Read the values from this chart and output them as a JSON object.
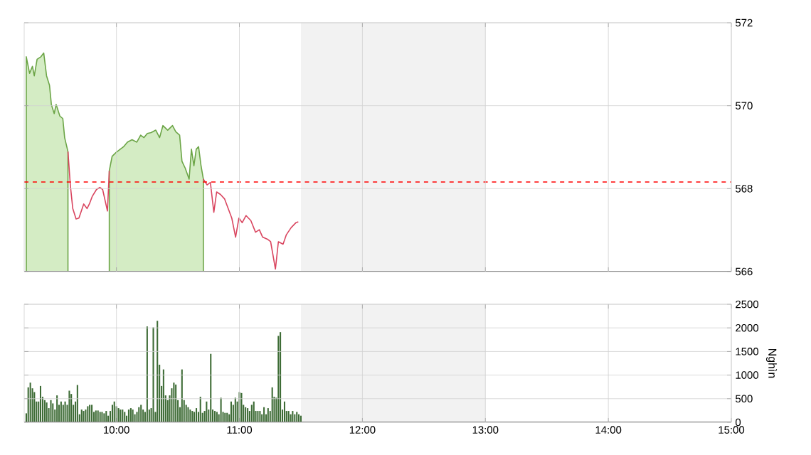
{
  "chart_data": [
    {
      "type": "line",
      "xlim": [
        9.25,
        15
      ],
      "ylim": [
        566,
        572
      ],
      "yticks": [
        566,
        568,
        570,
        572
      ],
      "xticks": [
        {
          "value": 10,
          "label": null
        },
        {
          "value": 11,
          "label": null
        },
        {
          "value": 12,
          "label": null
        },
        {
          "value": 13,
          "label": null
        },
        {
          "value": 14,
          "label": null
        },
        {
          "value": 15,
          "label": null
        }
      ],
      "tick_labels": "y",
      "grid": true,
      "x": [
        9.267,
        9.294,
        9.317,
        9.332,
        9.355,
        9.386,
        9.409,
        9.432,
        9.456,
        9.471,
        9.494,
        9.51,
        9.54,
        9.564,
        9.579,
        9.606,
        9.625,
        9.645,
        9.672,
        9.695,
        9.734,
        9.761,
        9.78,
        9.803,
        9.838,
        9.865,
        9.888,
        9.927,
        9.942,
        9.965,
        9.996,
        10.031,
        10.058,
        10.089,
        10.127,
        10.166,
        10.197,
        10.224,
        10.251,
        10.282,
        10.32,
        10.351,
        10.378,
        10.417,
        10.456,
        10.483,
        10.514,
        10.533,
        10.56,
        10.591,
        10.61,
        10.63,
        10.649,
        10.668,
        10.688,
        10.707,
        10.737,
        10.764,
        10.792,
        10.815,
        10.846,
        10.88,
        10.938,
        10.969,
        10.996,
        11.023,
        11.054,
        11.093,
        11.131,
        11.162,
        11.189,
        11.228,
        11.254,
        11.293,
        11.317,
        11.355,
        11.382,
        11.421,
        11.46,
        11.479
      ],
      "series": [
        {
          "type": "area",
          "color": "#d4ecc4",
          "values": [
            571.18,
            570.78,
            570.95,
            570.72,
            571.12,
            571.18,
            571.27,
            570.72,
            570.49,
            570.03,
            569.81,
            570.03,
            569.75,
            569.69,
            569.23,
            568.89,
            null,
            null,
            null,
            null,
            null,
            null,
            null,
            null,
            null,
            null,
            null,
            null,
            null,
            null,
            null,
            null,
            null,
            null,
            null,
            null,
            null,
            null,
            null,
            null,
            null,
            null,
            null,
            null,
            null,
            null,
            null,
            null,
            null,
            null,
            null,
            null,
            null,
            null,
            null,
            null,
            null,
            null,
            null,
            null,
            null,
            null,
            null,
            null,
            null,
            null,
            null,
            null,
            null,
            null,
            null,
            null,
            null,
            null,
            null,
            null,
            null,
            null,
            null,
            null
          ]
        },
        {
          "type": "area",
          "color": "#d4ecc4",
          "values": [
            null,
            null,
            null,
            null,
            null,
            null,
            null,
            null,
            null,
            null,
            null,
            null,
            null,
            null,
            null,
            null,
            null,
            null,
            null,
            null,
            null,
            null,
            null,
            null,
            null,
            null,
            null,
            null,
            568.43,
            568.78,
            568.87,
            568.95,
            569.01,
            569.12,
            569.18,
            569.12,
            569.29,
            569.23,
            569.33,
            569.35,
            569.41,
            569.23,
            569.52,
            569.41,
            569.52,
            569.37,
            569.29,
            568.66,
            568.49,
            568.23,
            568.95,
            568.55,
            568.95,
            569.01,
            568.55,
            568.23,
            null,
            null,
            null,
            null,
            null,
            null,
            null,
            null,
            null,
            null,
            null,
            null,
            null,
            null,
            null,
            null,
            null,
            null,
            null,
            null,
            null,
            null,
            null,
            null
          ]
        },
        {
          "type": "line",
          "color": "#d9455f",
          "values": [
            null,
            null,
            null,
            null,
            null,
            null,
            null,
            null,
            null,
            null,
            null,
            null,
            null,
            null,
            null,
            568.89,
            568.09,
            567.52,
            567.27,
            567.29,
            567.63,
            567.52,
            567.63,
            567.81,
            567.98,
            568.03,
            567.98,
            567.46,
            568.43,
            null,
            null,
            null,
            null,
            null,
            null,
            null,
            null,
            null,
            null,
            null,
            null,
            null,
            null,
            null,
            null,
            null,
            null,
            null,
            null,
            null,
            null,
            null,
            null,
            null,
            null,
            568.23,
            568.09,
            568.15,
            567.43,
            567.92,
            567.86,
            567.75,
            567.29,
            566.83,
            567.29,
            567.18,
            567.35,
            567.23,
            566.95,
            567.01,
            566.83,
            566.78,
            566.72,
            566.06,
            566.72,
            566.66,
            566.89,
            567.06,
            567.18,
            567.2
          ]
        }
      ],
      "ref_lines": [
        {
          "axis": "y",
          "value": 568.16,
          "color": "#ff0000",
          "line_style": "dashed"
        }
      ],
      "bands": [
        {
          "axis": "x",
          "from": 11.5,
          "to": 13,
          "color": "#f2f2f2"
        }
      ]
    },
    {
      "type": "bar",
      "xlim": [
        9.25,
        15
      ],
      "ylim": [
        0,
        2500
      ],
      "yticks": [
        0,
        500,
        1000,
        1500,
        2000,
        2500
      ],
      "ylabel": "Nghìn",
      "grid": true,
      "xticks": [
        {
          "value": 10,
          "label": "10:00"
        },
        {
          "value": 11,
          "label": "11:00"
        },
        {
          "value": 12,
          "label": "12:00"
        },
        {
          "value": 13,
          "label": "13:00"
        },
        {
          "value": 14,
          "label": "14:00"
        },
        {
          "value": 15,
          "label": "15:00"
        }
      ],
      "x": [
        9.267,
        9.283,
        9.3,
        9.317,
        9.333,
        9.35,
        9.367,
        9.383,
        9.4,
        9.417,
        9.433,
        9.45,
        9.467,
        9.483,
        9.5,
        9.517,
        9.533,
        9.55,
        9.567,
        9.583,
        9.6,
        9.617,
        9.633,
        9.65,
        9.667,
        9.683,
        9.7,
        9.717,
        9.733,
        9.75,
        9.767,
        9.783,
        9.8,
        9.817,
        9.833,
        9.85,
        9.867,
        9.883,
        9.9,
        9.917,
        9.933,
        9.95,
        9.967,
        9.983,
        10,
        10.017,
        10.033,
        10.05,
        10.067,
        10.083,
        10.1,
        10.117,
        10.133,
        10.15,
        10.167,
        10.183,
        10.2,
        10.217,
        10.233,
        10.25,
        10.267,
        10.283,
        10.3,
        10.317,
        10.333,
        10.35,
        10.367,
        10.383,
        10.4,
        10.417,
        10.433,
        10.45,
        10.467,
        10.483,
        10.5,
        10.517,
        10.533,
        10.55,
        10.567,
        10.583,
        10.6,
        10.617,
        10.633,
        10.65,
        10.667,
        10.683,
        10.7,
        10.717,
        10.733,
        10.75,
        10.767,
        10.783,
        10.8,
        10.817,
        10.833,
        10.85,
        10.867,
        10.883,
        10.9,
        10.917,
        10.933,
        10.95,
        10.967,
        10.983,
        11,
        11.017,
        11.033,
        11.05,
        11.067,
        11.083,
        11.1,
        11.117,
        11.133,
        11.15,
        11.167,
        11.183,
        11.2,
        11.217,
        11.233,
        11.25,
        11.267,
        11.283,
        11.3,
        11.317,
        11.333,
        11.35,
        11.367,
        11.383,
        11.4,
        11.417,
        11.433,
        11.45,
        11.467,
        11.483,
        11.5
      ],
      "series": [
        {
          "color": "#3d6b35",
          "values": [
            190,
            740,
            840,
            720,
            640,
            440,
            440,
            770,
            540,
            470,
            420,
            300,
            470,
            400,
            270,
            570,
            370,
            440,
            370,
            440,
            370,
            670,
            600,
            370,
            440,
            790,
            170,
            270,
            240,
            270,
            340,
            370,
            370,
            220,
            250,
            250,
            220,
            220,
            190,
            240,
            140,
            240,
            370,
            440,
            340,
            300,
            270,
            270,
            220,
            140,
            270,
            300,
            270,
            170,
            220,
            320,
            370,
            270,
            220,
            2030,
            270,
            300,
            2010,
            220,
            2150,
            1220,
            770,
            1120,
            570,
            470,
            570,
            720,
            840,
            800,
            470,
            320,
            1120,
            470,
            370,
            320,
            270,
            240,
            220,
            300,
            220,
            540,
            200,
            240,
            440,
            270,
            1450,
            270,
            240,
            220,
            170,
            520,
            220,
            200,
            200,
            170,
            440,
            370,
            520,
            440,
            640,
            620,
            370,
            320,
            300,
            240,
            370,
            440,
            240,
            240,
            240,
            170,
            320,
            170,
            300,
            240,
            740,
            540,
            520,
            1830,
            1910,
            270,
            440,
            240,
            240,
            170,
            240,
            170,
            220,
            170,
            140
          ]
        }
      ],
      "bands": [
        {
          "axis": "x",
          "from": 11.5,
          "to": 13,
          "color": "#f2f2f2"
        }
      ]
    }
  ]
}
